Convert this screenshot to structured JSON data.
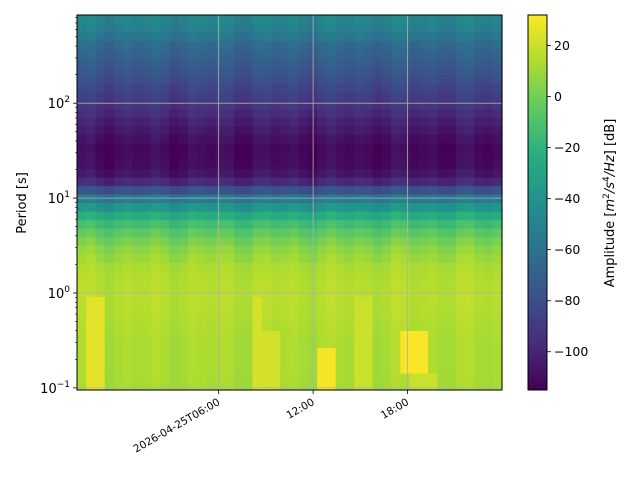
{
  "chart_data": {
    "type": "heatmap",
    "title": "",
    "xlabel": "",
    "ylabel": "Period [s]",
    "y_scale": "log",
    "ylim": [
      0.095,
      850
    ],
    "xlim": [
      "2026-04-24T21:00:00",
      "2026-04-26T00:00:00"
    ],
    "grid": true,
    "x_ticks": [
      {
        "time": "2026-04-25T06:00:00",
        "label": "2026-04-25T06:00"
      },
      {
        "time": "2026-04-25T12:00:00",
        "label": "12:00"
      },
      {
        "time": "2026-04-25T18:00:00",
        "label": "18:00"
      }
    ],
    "y_ticks": [
      {
        "value": 0.1,
        "base": "10",
        "exp": "−1"
      },
      {
        "value": 1,
        "base": "10",
        "exp": "0"
      },
      {
        "value": 10,
        "base": "10",
        "exp": "1"
      },
      {
        "value": 100,
        "base": "10",
        "exp": "2"
      }
    ],
    "time_bins": 46,
    "period_profile": [
      {
        "period": 0.1,
        "amplitude_db": 12
      },
      {
        "period": 0.15,
        "amplitude_db": 13
      },
      {
        "period": 0.3,
        "amplitude_db": 13
      },
      {
        "period": 0.6,
        "amplitude_db": 15
      },
      {
        "period": 1,
        "amplitude_db": 16
      },
      {
        "period": 1.8,
        "amplitude_db": 14
      },
      {
        "period": 3,
        "amplitude_db": 6
      },
      {
        "period": 5,
        "amplitude_db": -10
      },
      {
        "period": 7,
        "amplitude_db": -28
      },
      {
        "period": 10,
        "amplitude_db": -55
      },
      {
        "period": 14,
        "amplitude_db": -95
      },
      {
        "period": 20,
        "amplitude_db": -110
      },
      {
        "period": 35,
        "amplitude_db": -112
      },
      {
        "period": 60,
        "amplitude_db": -103
      },
      {
        "period": 100,
        "amplitude_db": -92
      },
      {
        "period": 200,
        "amplitude_db": -78
      },
      {
        "period": 400,
        "amplitude_db": -65
      },
      {
        "period": 600,
        "amplitude_db": -52
      },
      {
        "period": 850,
        "amplitude_db": -48
      }
    ],
    "events": [
      {
        "start": "2026-04-24T21:30:00",
        "end": "2026-04-24T22:30:00",
        "period_min": 0.1,
        "period_max": 1.0,
        "amplitude_db": 26
      },
      {
        "start": "2026-04-25T08:00:00",
        "end": "2026-04-25T09:00:00",
        "period_min": 0.1,
        "period_max": 1.0,
        "amplitude_db": 23
      },
      {
        "start": "2026-04-25T09:00:00",
        "end": "2026-04-25T10:00:00",
        "period_min": 0.1,
        "period_max": 0.4,
        "amplitude_db": 22
      },
      {
        "start": "2026-04-25T12:30:00",
        "end": "2026-04-25T13:30:00",
        "period_min": 0.1,
        "period_max": 0.25,
        "amplitude_db": 30
      },
      {
        "start": "2026-04-25T14:30:00",
        "end": "2026-04-25T15:30:00",
        "period_min": 0.1,
        "period_max": 1.0,
        "amplitude_db": 20
      },
      {
        "start": "2026-04-25T17:30:00",
        "end": "2026-04-25T19:30:00",
        "period_min": 0.15,
        "period_max": 0.4,
        "amplitude_db": 31
      },
      {
        "start": "2026-04-25T18:00:00",
        "end": "2026-04-25T20:00:00",
        "period_min": 0.1,
        "period_max": 0.15,
        "amplitude_db": 20
      }
    ],
    "colorbar": {
      "label_prefix": "Amplitude [",
      "label_unit_m": "m",
      "label_unit_m_exp": "2",
      "label_unit_s": "/s",
      "label_unit_s_exp": "4",
      "label_unit_hz": "/Hz",
      "label_suffix": "] [dB]",
      "range": [
        -115,
        32
      ],
      "colormap": "viridis",
      "ticks": [
        {
          "value": 20,
          "label": "20"
        },
        {
          "value": 0,
          "label": "0"
        },
        {
          "value": -20,
          "label": "−20"
        },
        {
          "value": -40,
          "label": "−40"
        },
        {
          "value": -60,
          "label": "−60"
        },
        {
          "value": -80,
          "label": "−80"
        },
        {
          "value": -100,
          "label": "−100"
        }
      ]
    }
  }
}
